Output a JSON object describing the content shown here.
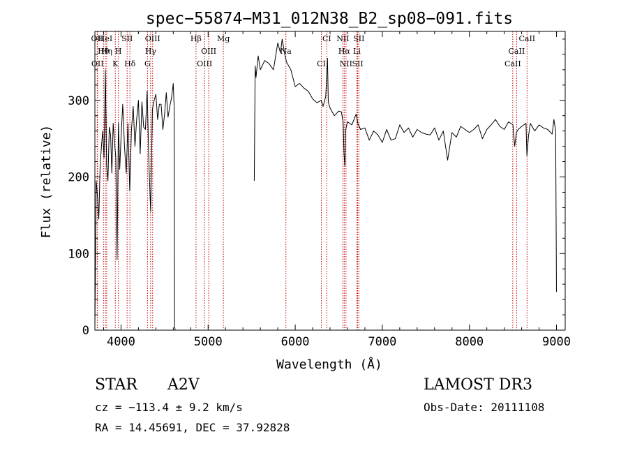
{
  "chart_data": {
    "type": "line",
    "title": "spec−55874−M31_012N38_B2_sp08−091.fits",
    "xlabel": "Wavelength (Å)",
    "ylabel": "Flux (relative)",
    "xlim": [
      3700,
      9100
    ],
    "ylim": [
      0,
      390
    ],
    "xticks": [
      4000,
      5000,
      6000,
      7000,
      8000,
      9000
    ],
    "xtick_labels": [
      "4000",
      "5000",
      "6000",
      "7000",
      "8000",
      "9000"
    ],
    "yticks": [
      0,
      100,
      200,
      300
    ],
    "ytick_labels": [
      "0",
      "100",
      "200",
      "300"
    ],
    "series": [
      {
        "name": "flux",
        "segments": [
          {
            "x": [
              3700,
              3715,
              3730,
              3745,
              3760,
              3775,
              3790,
              3805,
              3820,
              3835,
              3850,
              3865,
              3880,
              3895,
              3910,
              3925,
              3940,
              3955,
              3970,
              3985,
              4000,
              4020,
              4040,
              4060,
              4080,
              4100,
              4120,
              4140,
              4160,
              4180,
              4200,
              4220,
              4240,
              4260,
              4280,
              4300,
              4320,
              4340,
              4360,
              4380,
              4400,
              4420,
              4440,
              4460,
              4480,
              4500,
              4520,
              4540,
              4560,
              4580,
              4600,
              4610,
              4615,
              4622
            ],
            "y": [
              5,
              195,
              175,
              145,
              215,
              240,
              260,
              225,
              340,
              215,
              195,
              265,
              255,
              205,
              270,
              245,
              225,
              92,
              270,
              210,
              250,
              295,
              240,
              205,
              270,
              182,
              262,
              292,
              240,
              276,
              300,
              230,
              298,
              265,
              262,
              312,
              218,
              155,
              288,
              300,
              308,
              275,
              295,
              295,
              262,
              282,
              310,
              278,
              292,
              303,
              322,
              290,
              5,
              0
            ]
          },
          {
            "x": [
              5530,
              5540,
              5550,
              5575,
              5600,
              5650,
              5700,
              5750,
              5800,
              5830,
              5850,
              5880,
              5900,
              5950,
              6000,
              6050,
              6100,
              6150,
              6200,
              6250,
              6300,
              6320,
              6350,
              6370,
              6380,
              6400,
              6450,
              6500,
              6530,
              6550,
              6560,
              6570,
              6580,
              6600,
              6650,
              6700,
              6720,
              6750,
              6800,
              6850,
              6900,
              6950,
              7000,
              7050,
              7100,
              7150,
              7200,
              7250,
              7300,
              7350,
              7400,
              7450,
              7500,
              7550,
              7600,
              7650,
              7700,
              7750,
              7800,
              7850,
              7900,
              7950,
              8000,
              8050,
              8100,
              8150,
              8200,
              8250,
              8300,
              8350,
              8400,
              8450,
              8500,
              8520,
              8540,
              8560,
              8600,
              8650,
              8660,
              8680,
              8700,
              8750,
              8800,
              8850,
              8900,
              8950,
              8970,
              8990,
              9000
            ],
            "y": [
              195,
              345,
              330,
              358,
              340,
              352,
              348,
              340,
              375,
              362,
              380,
              360,
              350,
              340,
              318,
              322,
              316,
              312,
              302,
              297,
              300,
              292,
              305,
              355,
              298,
              290,
              280,
              286,
              285,
              272,
              230,
              215,
              262,
              272,
              268,
              282,
              270,
              262,
              264,
              248,
              260,
              255,
              245,
              262,
              248,
              250,
              268,
              258,
              264,
              252,
              262,
              258,
              256,
              255,
              264,
              248,
              260,
              222,
              258,
              252,
              266,
              262,
              258,
              262,
              268,
              250,
              262,
              268,
              275,
              266,
              262,
              272,
              268,
              240,
              258,
              262,
              266,
              270,
              228,
              255,
              270,
              260,
              268,
              264,
              262,
              256,
              275,
              260,
              50
            ]
          }
        ]
      }
    ],
    "lines": [
      {
        "label": "OII",
        "x": 3727
      },
      {
        "label": "Hθ",
        "x": 3798
      },
      {
        "label": "OII",
        "x": 3730
      },
      {
        "label": "HeI",
        "x": 3820
      },
      {
        "label": "Hη",
        "x": 3835
      },
      {
        "label": "K",
        "x": 3934
      },
      {
        "label": "SII",
        "x": 4070
      },
      {
        "label": "H",
        "x": 3970
      },
      {
        "label": "Hδ",
        "x": 4102
      },
      {
        "label": "OIII",
        "x": 4363
      },
      {
        "label": "Hγ",
        "x": 4340
      },
      {
        "label": "G",
        "x": 4304
      },
      {
        "label": "Hβ",
        "x": 4861
      },
      {
        "label": "OIII",
        "x": 5007
      },
      {
        "label": "OIII",
        "x": 4959
      },
      {
        "label": "Mg",
        "x": 5175
      },
      {
        "label": "Na",
        "x": 5893
      },
      {
        "label": "CI",
        "x": 6300
      },
      {
        "label": "CI",
        "x": 6363
      },
      {
        "label": "Hα",
        "x": 6563
      },
      {
        "label": "SII",
        "x": 6717
      },
      {
        "label": "NII",
        "x": 6548
      },
      {
        "label": "Li",
        "x": 6708
      },
      {
        "label": "NII",
        "x": 6583
      },
      {
        "label": "SII",
        "x": 6731
      },
      {
        "label": "CaII",
        "x": 8542
      },
      {
        "label": "CaII",
        "x": 8498
      },
      {
        "label": "CaII",
        "x": 8662
      }
    ]
  },
  "info": {
    "object_class": "STAR",
    "subclass": "A2V",
    "survey": "LAMOST DR3",
    "redshift": "cz = −113.4 ± 9.2 km/s",
    "obs_date": "Obs-Date: 20111108",
    "coords": "RA =  14.45691, DEC =  37.92828"
  }
}
